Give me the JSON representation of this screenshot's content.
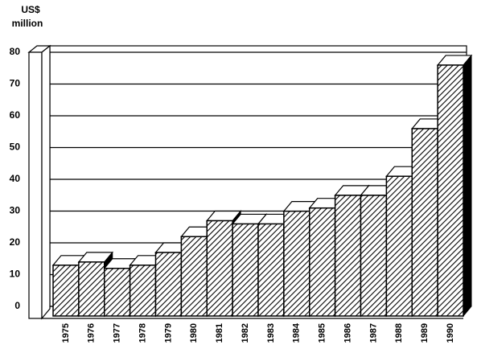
{
  "chart_data": {
    "type": "bar3d",
    "ylabel": [
      "US$",
      "million"
    ],
    "categories": [
      "1975",
      "1976",
      "1977",
      "1978",
      "1979",
      "1980",
      "1981",
      "1982",
      "1983",
      "1984",
      "1985",
      "1986",
      "1987",
      "1988",
      "1989",
      "1990"
    ],
    "values": [
      16,
      17,
      15,
      16,
      20,
      25,
      30,
      29,
      29,
      33,
      34,
      38,
      38,
      44,
      59,
      79
    ],
    "color": "#000000",
    "ylim": [
      0,
      80
    ],
    "yticks": [
      0,
      10,
      20,
      30,
      40,
      50,
      60,
      70,
      80
    ],
    "grid": true
  }
}
